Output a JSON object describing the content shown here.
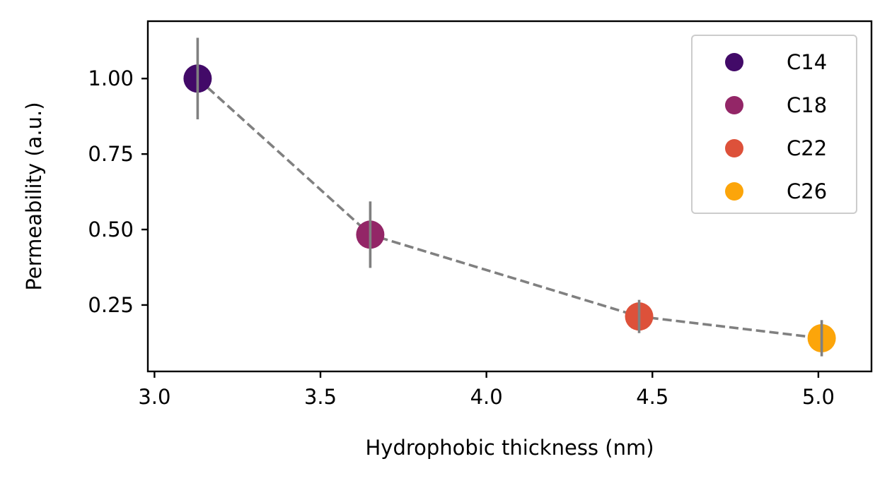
{
  "chart_data": {
    "type": "scatter",
    "xlabel": "Hydrophobic thickness (nm)",
    "ylabel": "Permeability (a.u.)",
    "xlim": [
      2.98,
      5.16
    ],
    "ylim": [
      0.03,
      1.19
    ],
    "xticks": [
      {
        "value": 3.0,
        "label": "3.0"
      },
      {
        "value": 3.5,
        "label": "3.5"
      },
      {
        "value": 4.0,
        "label": "4.0"
      },
      {
        "value": 4.5,
        "label": "4.5"
      },
      {
        "value": 5.0,
        "label": "5.0"
      }
    ],
    "yticks": [
      {
        "value": 0.25,
        "label": "0.25"
      },
      {
        "value": 0.5,
        "label": "0.50"
      },
      {
        "value": 0.75,
        "label": "0.75"
      },
      {
        "value": 1.0,
        "label": "1.00"
      }
    ],
    "series": [
      {
        "name": "C14",
        "color": "#420a68",
        "x": 3.13,
        "y": 1.0,
        "yerr": 0.135
      },
      {
        "name": "C18",
        "color": "#932667",
        "x": 3.65,
        "y": 0.483,
        "yerr": 0.11
      },
      {
        "name": "C22",
        "color": "#dd513a",
        "x": 4.46,
        "y": 0.212,
        "yerr": 0.055
      },
      {
        "name": "C26",
        "color": "#fca50a",
        "x": 5.01,
        "y": 0.14,
        "yerr": 0.06
      }
    ],
    "connector": {
      "style": "dashed",
      "color": "#808080"
    },
    "errorbar_color": "#808080",
    "legend_position": "top-right",
    "grid": false
  }
}
